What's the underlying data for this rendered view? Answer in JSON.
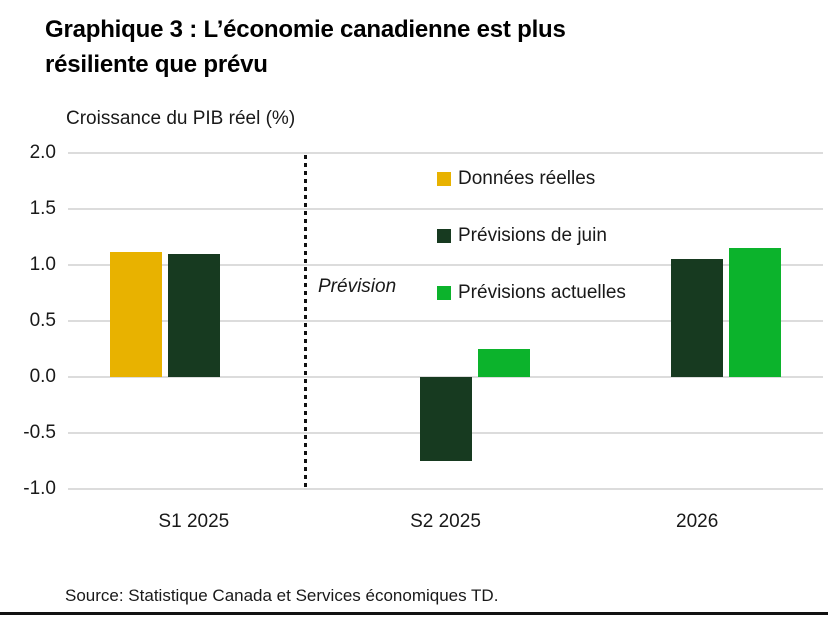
{
  "title_lines": [
    "Graphique 3 : L’économie canadienne est plus",
    "résiliente que prévu"
  ],
  "axis_title": "Croissance du PIB réel (%)",
  "forecast_label": "Prévision",
  "source": "Source: Statistique Canada et Services économiques TD.",
  "colors": {
    "actual_gold": "#E8B200",
    "june_forecast_dark_green": "#173A20",
    "current_forecast_green": "#0CB32C",
    "gridline": "#DCDCDC",
    "divider": "#111111",
    "text": "#191919"
  },
  "chart_data": {
    "type": "bar",
    "title": "Graphique 3 : L’économie canadienne est plus résiliente que prévu",
    "ylabel": "Croissance du PIB réel (%)",
    "xlabel": "",
    "categories": [
      "S1 2025",
      "S2 2025",
      "2026"
    ],
    "series": [
      {
        "name": "Données réelles",
        "color": "#E8B200",
        "values": [
          1.12,
          null,
          null
        ]
      },
      {
        "name": "Prévisions de juin",
        "color": "#173A20",
        "values": [
          1.1,
          -0.75,
          1.05
        ]
      },
      {
        "name": "Prévisions actuelles",
        "color": "#0CB32C",
        "values": [
          null,
          0.25,
          1.15
        ]
      }
    ],
    "ylim": [
      -1.0,
      2.0
    ],
    "ytick_labels": [
      "2.0",
      "1.5",
      "1.0",
      "0.5",
      "0.0",
      "-0.5",
      "-1.0"
    ],
    "grid": true,
    "legend_position": "upper middle",
    "annotations": [
      {
        "text": "Prévision",
        "style": "italic",
        "meaning": "forecast period begins after the dotted divider"
      }
    ],
    "divider_after_category": "S1 2025"
  }
}
